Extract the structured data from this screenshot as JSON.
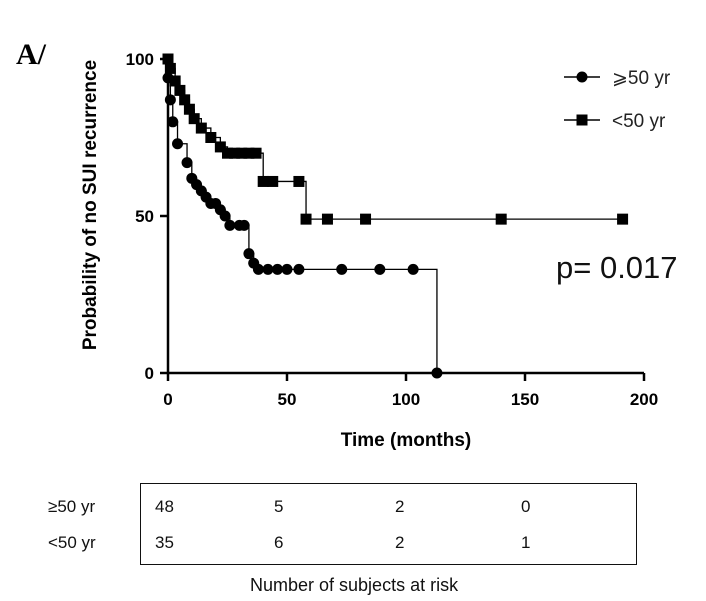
{
  "panel_label": "A/",
  "p_value_text": "p= 0.017",
  "chart_data": {
    "type": "line",
    "subtype": "kaplan-meier",
    "title": "",
    "xlabel": "Time (months)",
    "ylabel": "Probability of no SUI recurrence",
    "xlim": [
      0,
      200
    ],
    "ylim": [
      0,
      100
    ],
    "x_ticks": [
      0,
      50,
      100,
      150,
      200
    ],
    "y_ticks": [
      0,
      50,
      100
    ],
    "grid": false,
    "legend_position": "top-right",
    "series": [
      {
        "name": "⩾50 yr",
        "marker": "circle",
        "color": "#000000",
        "steps": [
          [
            0,
            94
          ],
          [
            1,
            87
          ],
          [
            2,
            80
          ],
          [
            4,
            73
          ],
          [
            8,
            67
          ],
          [
            10,
            62
          ],
          [
            12,
            60
          ],
          [
            14,
            58
          ],
          [
            16,
            56
          ],
          [
            18,
            54
          ],
          [
            22,
            52
          ],
          [
            24,
            50
          ],
          [
            26,
            47
          ],
          [
            30,
            47
          ],
          [
            34,
            38
          ],
          [
            36,
            35
          ],
          [
            38,
            33
          ],
          [
            113,
            0
          ]
        ],
        "censored": [
          [
            20,
            54
          ],
          [
            32,
            47
          ],
          [
            42,
            33
          ],
          [
            46,
            33
          ],
          [
            50,
            33
          ],
          [
            55,
            33
          ],
          [
            73,
            33
          ],
          [
            89,
            33
          ],
          [
            103,
            33
          ]
        ]
      },
      {
        "name": "<50 yr",
        "marker": "square",
        "color": "#000000",
        "steps": [
          [
            0,
            100
          ],
          [
            1,
            97
          ],
          [
            3,
            93
          ],
          [
            5,
            90
          ],
          [
            7,
            87
          ],
          [
            9,
            84
          ],
          [
            11,
            81
          ],
          [
            14,
            78
          ],
          [
            18,
            75
          ],
          [
            22,
            72
          ],
          [
            25,
            70
          ],
          [
            40,
            61
          ],
          [
            58,
            49
          ],
          [
            191,
            49
          ]
        ],
        "censored": [
          [
            28,
            70
          ],
          [
            31,
            70
          ],
          [
            34,
            70
          ],
          [
            37,
            70
          ],
          [
            44,
            61
          ],
          [
            55,
            61
          ],
          [
            67,
            49
          ],
          [
            83,
            49
          ],
          [
            140,
            49
          ]
        ]
      }
    ]
  },
  "risk_table": {
    "caption": "Number of subjects at risk",
    "rows": [
      {
        "label": "≥50 yr",
        "values": [
          "48",
          "5",
          "2",
          "0"
        ]
      },
      {
        "label": "<50 yr",
        "values": [
          "35",
          "6",
          "2",
          "1"
        ]
      }
    ]
  }
}
